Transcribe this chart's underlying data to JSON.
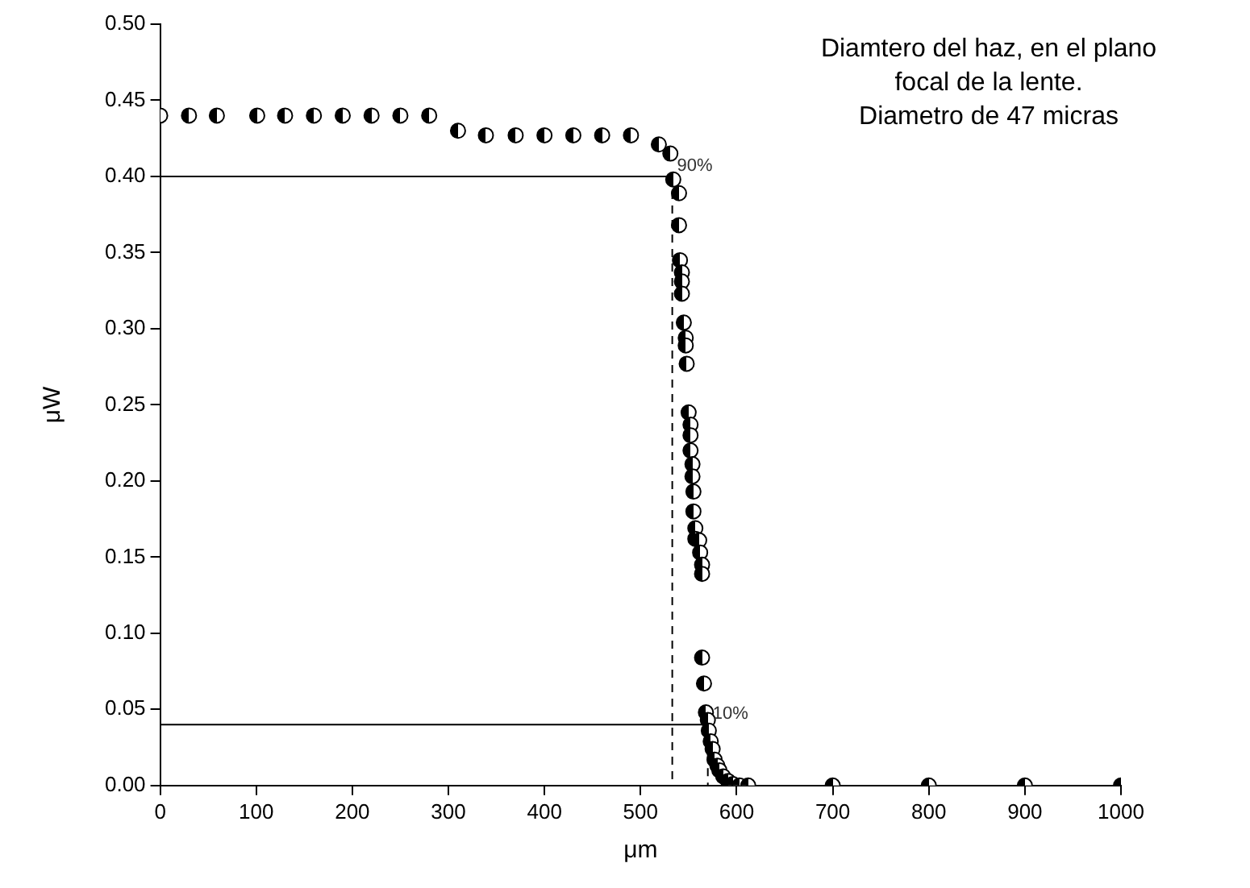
{
  "chart_data": {
    "type": "scatter",
    "xlabel": "μm",
    "ylabel": "μW",
    "xlim": [
      0,
      1000
    ],
    "xticks": [
      0,
      100,
      200,
      300,
      400,
      500,
      600,
      700,
      800,
      900,
      1000
    ],
    "ylim": [
      0,
      0.5
    ],
    "yticks": [
      {
        "value": 0,
        "label": "0.00"
      },
      {
        "value": 0.05,
        "label": "0.05"
      },
      {
        "value": 0.1,
        "label": "0.10"
      },
      {
        "value": 0.15,
        "label": "0.15"
      },
      {
        "value": 0.2,
        "label": "0.20"
      },
      {
        "value": 0.25,
        "label": "0.25"
      },
      {
        "value": 0.3,
        "label": "0.30"
      },
      {
        "value": 0.35,
        "label": "0.35"
      },
      {
        "value": 0.4,
        "label": "0.40"
      },
      {
        "value": 0.45,
        "label": "0.45"
      },
      {
        "value": 0.5,
        "label": "0.50"
      }
    ],
    "grid": false,
    "legend": false,
    "series": [
      {
        "type": "line",
        "color": "#000000",
        "line_style": "solid",
        "marker": "none",
        "x": [
          0,
          533
        ],
        "values": [
          0.4,
          0.4
        ]
      },
      {
        "type": "line",
        "color": "#000000",
        "line_style": "dashed",
        "marker": "none",
        "x": [
          533,
          533
        ],
        "values": [
          0.4,
          0
        ]
      },
      {
        "type": "line",
        "color": "#000000",
        "line_style": "solid",
        "marker": "none",
        "x": [
          0,
          570
        ],
        "values": [
          0.04,
          0.04
        ]
      },
      {
        "type": "line",
        "color": "#000000",
        "line_style": "dashed",
        "marker": "none",
        "x": [
          570,
          570
        ],
        "values": [
          0.04,
          0
        ]
      },
      {
        "color": "#000000",
        "marker": "circle",
        "x": [
          0,
          30,
          59,
          101,
          130,
          160,
          190,
          220,
          250,
          280,
          310,
          339,
          370,
          400,
          430,
          460,
          490,
          519,
          531,
          534,
          540,
          540,
          541,
          543,
          543,
          543,
          545,
          547,
          547,
          548,
          550,
          552,
          552,
          552,
          554,
          554,
          555,
          555,
          557,
          557,
          561,
          562,
          564,
          564,
          564,
          566,
          568,
          570,
          571,
          573,
          575,
          577,
          580,
          582,
          586,
          591,
          596,
          603,
          612,
          700,
          800,
          900,
          1000
        ],
        "values": [
          0.44,
          0.44,
          0.44,
          0.44,
          0.44,
          0.44,
          0.44,
          0.44,
          0.44,
          0.44,
          0.43,
          0.427,
          0.427,
          0.427,
          0.427,
          0.427,
          0.427,
          0.421,
          0.415,
          0.398,
          0.389,
          0.368,
          0.345,
          0.337,
          0.331,
          0.323,
          0.304,
          0.294,
          0.289,
          0.277,
          0.245,
          0.237,
          0.23,
          0.22,
          0.211,
          0.203,
          0.193,
          0.18,
          0.169,
          0.162,
          0.161,
          0.153,
          0.145,
          0.139,
          0.084,
          0.067,
          0.048,
          0.043,
          0.036,
          0.029,
          0.024,
          0.017,
          0.013,
          0.01,
          0.006,
          0.003,
          0.001,
          0,
          0,
          0,
          0,
          0,
          0
        ]
      }
    ],
    "annotations": [
      "Diamtero del haz, en el plano",
      "focal de la lente.",
      "Diametro de 47 micras",
      {
        "text": "90%",
        "x": 533,
        "y": 0.4
      },
      {
        "text": "10%",
        "x": 570,
        "y": 0.04
      }
    ]
  }
}
